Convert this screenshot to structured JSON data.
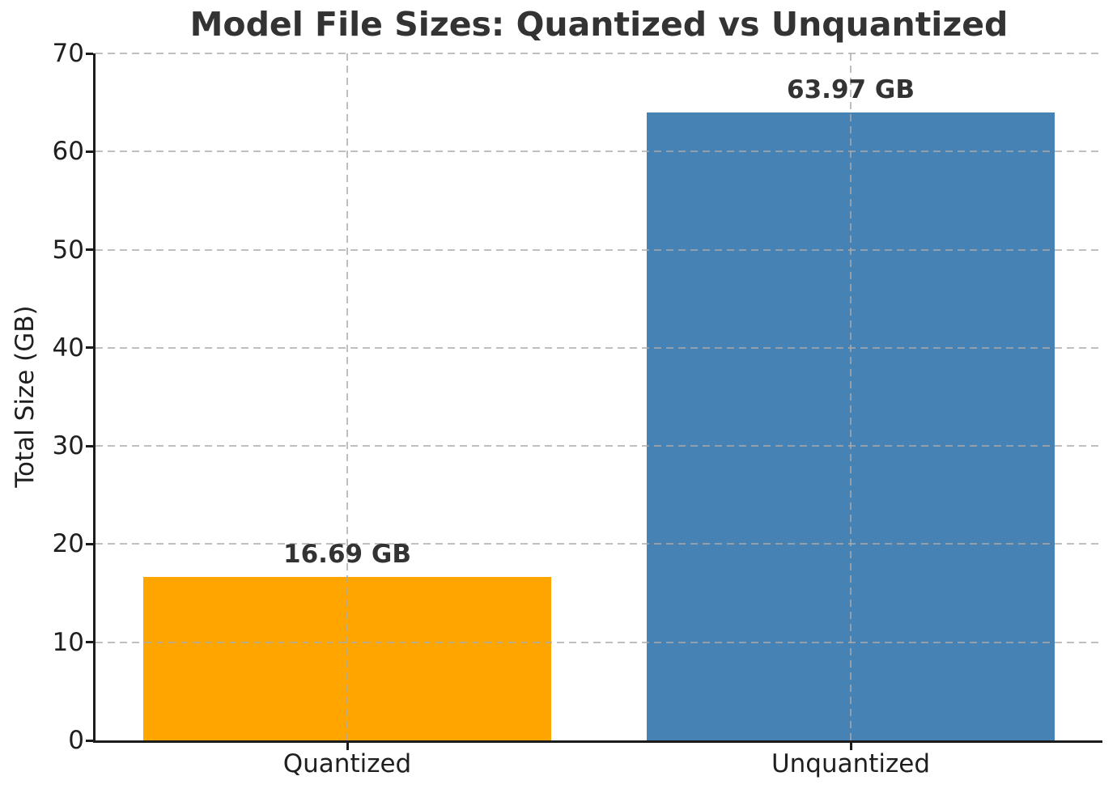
{
  "chart_data": {
    "type": "bar",
    "title": "Model File Sizes: Quantized vs Unquantized",
    "xlabel": "",
    "ylabel": "Total Size (GB)",
    "categories": [
      "Quantized",
      "Unquantized"
    ],
    "values": [
      16.69,
      63.97
    ],
    "value_labels": [
      "16.69 GB",
      "63.97 GB"
    ],
    "bar_colors": [
      "#FFA500",
      "#4682B4"
    ],
    "ylim": [
      0,
      70
    ],
    "yticks": [
      0,
      10,
      20,
      30,
      40,
      50,
      60,
      70
    ],
    "ytick_labels": [
      "0",
      "10",
      "20",
      "30",
      "40",
      "50",
      "60",
      "70"
    ],
    "grid": true,
    "grid_line_style": "dashed",
    "grid_color": "#cccccc",
    "grid_above_bars": true,
    "spine_color": "#1c1c1c",
    "text_color": "#333333",
    "background_color": "#ffffff",
    "legend": null
  }
}
